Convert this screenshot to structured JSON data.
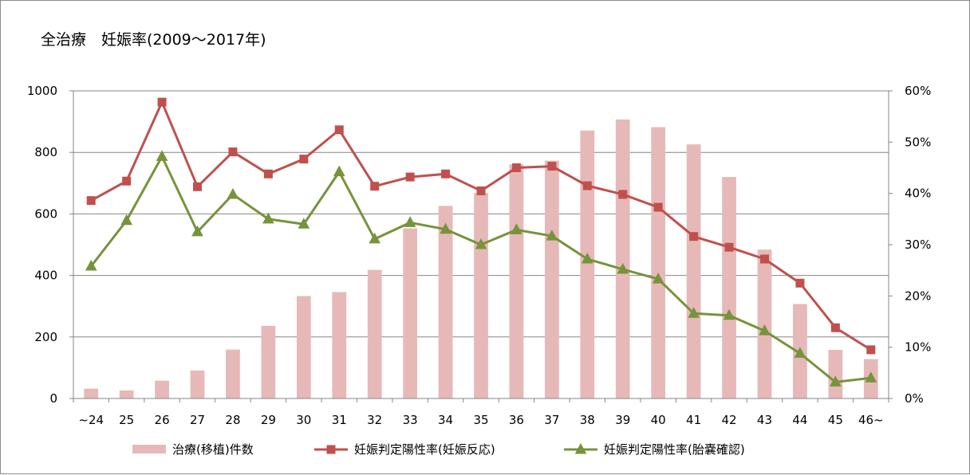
{
  "chart_data": {
    "type": "bar+line",
    "title": "全治療　妊娠率(2009～2017年)",
    "categories": [
      "~24",
      "25",
      "26",
      "27",
      "28",
      "29",
      "30",
      "31",
      "32",
      "33",
      "34",
      "35",
      "36",
      "37",
      "38",
      "39",
      "40",
      "41",
      "42",
      "43",
      "44",
      "45",
      "46~"
    ],
    "left_axis": {
      "range": [
        0,
        1000
      ],
      "ticks": [
        "0",
        "200",
        "400",
        "600",
        "800",
        "1000"
      ]
    },
    "right_axis": {
      "range": [
        0,
        60
      ],
      "ticks": [
        "0%",
        "10%",
        "20%",
        "30%",
        "40%",
        "50%",
        "60%"
      ]
    },
    "grid": true,
    "legend_position": "bottom",
    "series": [
      {
        "name": "治療(移植)件数",
        "type": "bar",
        "axis": "left",
        "color": "#e6b9b8",
        "values": [
          32,
          26,
          58,
          91,
          159,
          236,
          333,
          346,
          418,
          553,
          626,
          668,
          761,
          773,
          871,
          907,
          882,
          826,
          720,
          484,
          307,
          158,
          128
        ]
      },
      {
        "name": "妊娠判定陽性率(妊娠反応)",
        "type": "line",
        "axis": "right",
        "marker": "square",
        "color": "#c0504d",
        "values": [
          38.6,
          42.4,
          57.8,
          41.3,
          48.1,
          43.8,
          46.7,
          52.4,
          41.4,
          43.2,
          43.8,
          40.5,
          45.0,
          45.3,
          41.5,
          39.8,
          37.3,
          31.6,
          29.5,
          27.2,
          22.5,
          13.8,
          9.5
        ]
      },
      {
        "name": "妊娠判定陽性率(胎嚢確認)",
        "type": "line",
        "axis": "right",
        "marker": "triangle",
        "color": "#77933c",
        "values": [
          25.8,
          34.7,
          47.2,
          32.5,
          39.8,
          35.0,
          34.0,
          44.2,
          31.1,
          34.3,
          33.0,
          30.0,
          32.9,
          31.7,
          27.2,
          25.2,
          23.3,
          16.6,
          16.2,
          13.2,
          8.8,
          3.2,
          4.0
        ]
      }
    ]
  }
}
